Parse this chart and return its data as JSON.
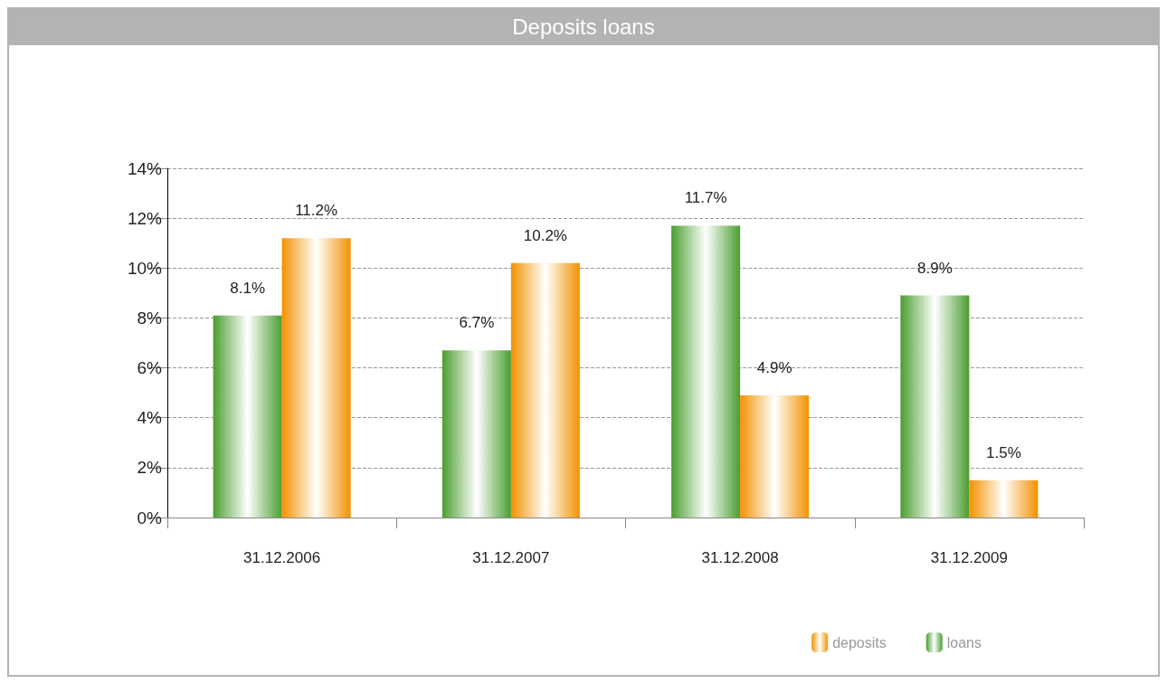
{
  "chart_data": {
    "type": "bar",
    "title": "Deposits loans",
    "categories": [
      "31.12.2006",
      "31.12.2007",
      "31.12.2008",
      "31.12.2009"
    ],
    "series": [
      {
        "name": "loans",
        "color": "#4a9e2f",
        "values": [
          8.1,
          6.7,
          11.7,
          8.9
        ],
        "value_labels": [
          "8.1%",
          "6.7%",
          "11.7%",
          "8.9%"
        ]
      },
      {
        "name": "deposits",
        "color": "#f39200",
        "values": [
          11.2,
          10.2,
          4.9,
          1.5
        ],
        "value_labels": [
          "11.2%",
          "10.2%",
          "4.9%",
          "1.5%"
        ]
      }
    ],
    "ylim": [
      0,
      14
    ],
    "yticks": [
      {
        "value": 0,
        "label": "0%"
      },
      {
        "value": 2,
        "label": "2%"
      },
      {
        "value": 4,
        "label": "4%"
      },
      {
        "value": 6,
        "label": "6%"
      },
      {
        "value": 8,
        "label": "8%"
      },
      {
        "value": 10,
        "label": "10%"
      },
      {
        "value": 12,
        "label": "12%"
      },
      {
        "value": 14,
        "label": "14%"
      }
    ],
    "grid": "y",
    "legend": "bottom right"
  }
}
